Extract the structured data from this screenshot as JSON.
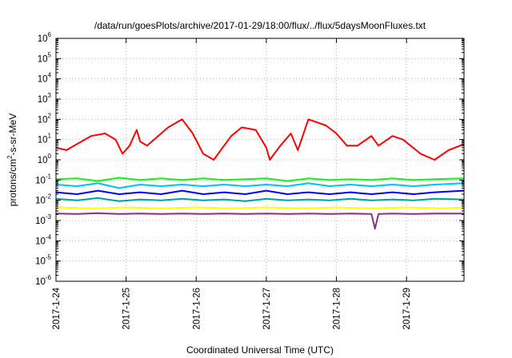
{
  "chart_data": {
    "type": "line",
    "title": "/data/run/goesPlots/archive/2017-01-29/18:00/flux/../flux/5daysMoonFluxes.txt",
    "xlabel": "Coordinated Universal Time (UTC)",
    "ylabel": {
      "pre": "protons/cm",
      "sup": "2",
      "post": "-s-sr-MeV"
    },
    "x_ticks": [
      "2017-1-24",
      "2017-1-25",
      "2017-1-26",
      "2017-1-27",
      "2017-1-28",
      "2017-1-29"
    ],
    "xlim": [
      0,
      5.82
    ],
    "y_scale": "log",
    "y_ticks": [
      {
        "base": "10",
        "exp": "6"
      },
      {
        "base": "10",
        "exp": "5"
      },
      {
        "base": "10",
        "exp": "4"
      },
      {
        "base": "10",
        "exp": "3"
      },
      {
        "base": "10",
        "exp": "2"
      },
      {
        "base": "10",
        "exp": "1"
      },
      {
        "base": "10",
        "exp": "0"
      },
      {
        "base": "10",
        "exp": "-1"
      },
      {
        "base": "10",
        "exp": "-2"
      },
      {
        "base": "10",
        "exp": "-3"
      },
      {
        "base": "10",
        "exp": "-4"
      },
      {
        "base": "10",
        "exp": "-5"
      },
      {
        "base": "10",
        "exp": "-6"
      }
    ],
    "ylim_log10": [
      -6,
      6
    ],
    "grid": true,
    "series": [
      {
        "color": "#ff0000",
        "width": 2,
        "x": [
          0,
          0.15,
          0.3,
          0.5,
          0.7,
          0.85,
          0.95,
          1.05,
          1.15,
          1.2,
          1.3,
          1.5,
          1.6,
          1.8,
          1.95,
          2.1,
          2.25,
          2.35,
          2.5,
          2.65,
          2.85,
          3.0,
          3.05,
          3.2,
          3.35,
          3.45,
          3.6,
          3.85,
          4.0,
          4.15,
          4.3,
          4.5,
          4.6,
          4.8,
          4.95,
          5.2,
          5.4,
          5.6,
          5.82
        ],
        "values": [
          4,
          3,
          6,
          15,
          20,
          10,
          2,
          5,
          30,
          8,
          5,
          20,
          40,
          100,
          20,
          2,
          1,
          3,
          15,
          40,
          30,
          4,
          1,
          5,
          20,
          3,
          100,
          50,
          20,
          5,
          5,
          15,
          5,
          15,
          10,
          2,
          1,
          3,
          6
        ]
      },
      {
        "color": "#00ff00",
        "width": 2,
        "x": [
          0,
          0.3,
          0.6,
          0.9,
          1.2,
          1.5,
          1.8,
          2.1,
          2.4,
          2.7,
          3.0,
          3.3,
          3.6,
          3.9,
          4.2,
          4.5,
          4.8,
          5.1,
          5.4,
          5.82
        ],
        "values": [
          0.11,
          0.12,
          0.09,
          0.13,
          0.1,
          0.12,
          0.1,
          0.12,
          0.1,
          0.11,
          0.12,
          0.09,
          0.12,
          0.1,
          0.11,
          0.1,
          0.12,
          0.1,
          0.11,
          0.12
        ]
      },
      {
        "color": "#00bfff",
        "width": 2,
        "x": [
          0,
          0.3,
          0.6,
          0.9,
          1.2,
          1.5,
          1.8,
          2.1,
          2.4,
          2.7,
          3.0,
          3.3,
          3.6,
          3.9,
          4.2,
          4.5,
          4.8,
          5.1,
          5.4,
          5.82
        ],
        "values": [
          0.06,
          0.05,
          0.07,
          0.04,
          0.06,
          0.05,
          0.06,
          0.05,
          0.06,
          0.05,
          0.06,
          0.05,
          0.07,
          0.05,
          0.06,
          0.05,
          0.06,
          0.05,
          0.06,
          0.07
        ]
      },
      {
        "color": "#0000ff",
        "width": 2,
        "x": [
          0,
          0.3,
          0.6,
          0.9,
          1.2,
          1.5,
          1.8,
          2.1,
          2.4,
          2.7,
          3.0,
          3.3,
          3.6,
          3.9,
          4.2,
          4.5,
          4.8,
          5.1,
          5.4,
          5.82
        ],
        "values": [
          0.025,
          0.02,
          0.03,
          0.02,
          0.025,
          0.02,
          0.03,
          0.02,
          0.025,
          0.02,
          0.03,
          0.02,
          0.025,
          0.02,
          0.025,
          0.02,
          0.025,
          0.02,
          0.025,
          0.03
        ]
      },
      {
        "color": "#00a0a0",
        "width": 2,
        "x": [
          0,
          0.3,
          0.6,
          0.9,
          1.2,
          1.5,
          1.8,
          2.1,
          2.4,
          2.7,
          3.0,
          3.3,
          3.6,
          3.9,
          4.2,
          4.5,
          4.8,
          5.1,
          5.4,
          5.82
        ],
        "values": [
          0.012,
          0.01,
          0.013,
          0.009,
          0.011,
          0.01,
          0.012,
          0.01,
          0.011,
          0.009,
          0.012,
          0.01,
          0.011,
          0.01,
          0.012,
          0.01,
          0.011,
          0.01,
          0.012,
          0.011
        ]
      },
      {
        "color": "#ffff00",
        "width": 2,
        "x": [
          0,
          0.5,
          1.0,
          1.5,
          2.0,
          2.5,
          3.0,
          3.5,
          4.0,
          4.5,
          5.0,
          5.5,
          5.82
        ],
        "values": [
          0.0045,
          0.004,
          0.0045,
          0.004,
          0.0045,
          0.004,
          0.0045,
          0.004,
          0.0045,
          0.004,
          0.0045,
          0.004,
          0.0045
        ]
      },
      {
        "color": "#8b2f7a",
        "width": 2,
        "x": [
          0,
          0.3,
          0.6,
          0.9,
          1.2,
          1.5,
          1.8,
          2.1,
          2.4,
          2.7,
          3.0,
          3.3,
          3.6,
          3.9,
          4.2,
          4.5,
          4.55,
          4.6,
          4.8,
          5.1,
          5.4,
          5.82
        ],
        "values": [
          0.0022,
          0.0021,
          0.0023,
          0.0021,
          0.0022,
          0.0021,
          0.0022,
          0.0021,
          0.0022,
          0.0021,
          0.0022,
          0.0021,
          0.0022,
          0.0021,
          0.0022,
          0.0021,
          0.0004,
          0.0021,
          0.0022,
          0.0021,
          0.0022,
          0.0022
        ]
      }
    ]
  }
}
